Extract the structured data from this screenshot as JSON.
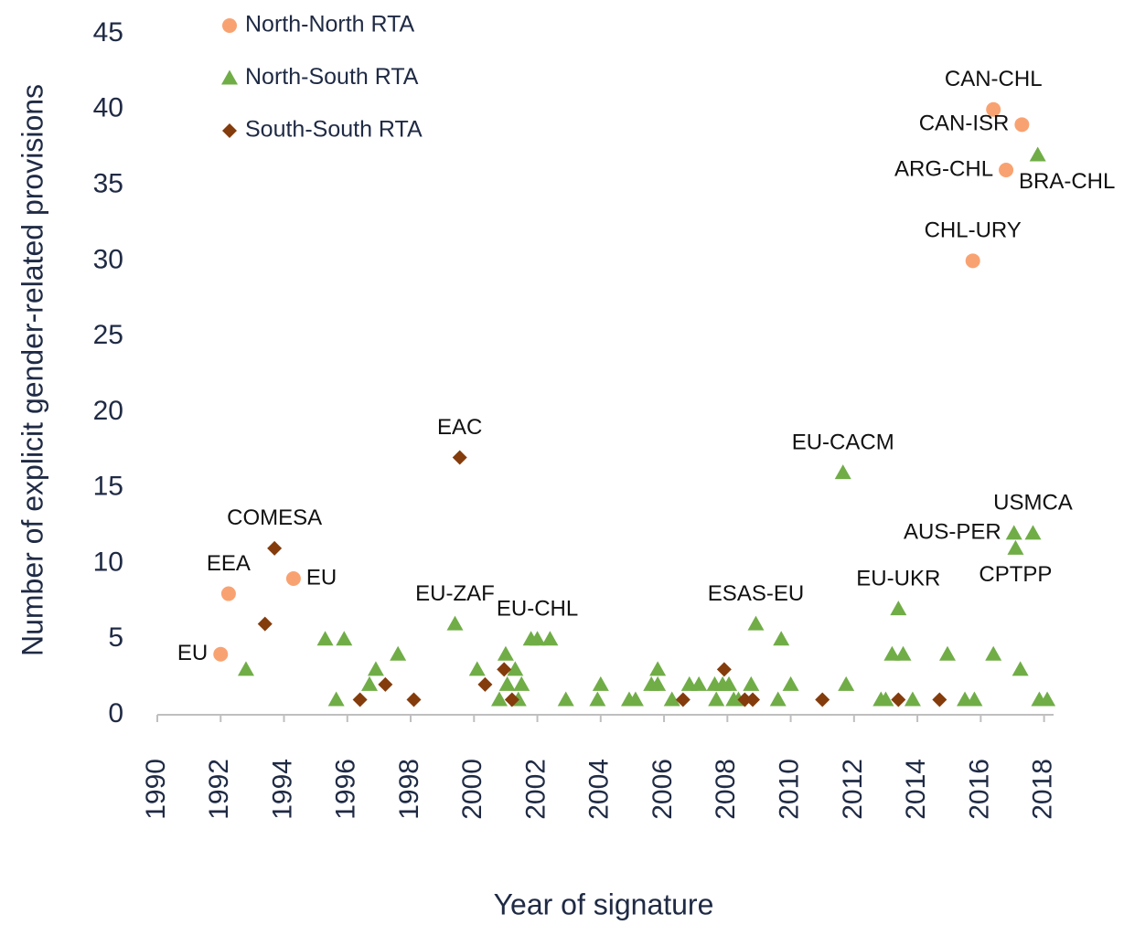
{
  "chart_data": {
    "type": "scatter",
    "x_label": "Year of signature",
    "y_label": "Number of explicit gender-related provisions",
    "xlim": [
      1990,
      2018.3
    ],
    "xticks": [
      1990,
      1992,
      1994,
      1996,
      1998,
      2000,
      2002,
      2004,
      2006,
      2008,
      2010,
      2012,
      2014,
      2016,
      2018
    ],
    "ylim": [
      0,
      45
    ],
    "yticks": [
      0,
      5,
      10,
      15,
      20,
      25,
      30,
      35,
      40,
      45
    ],
    "legend": "top-left",
    "series": [
      {
        "name": "North-North RTA",
        "color": "#f9a271",
        "marker": "circle",
        "x": [
          1992.0,
          1992.25,
          1994.3,
          2016.4,
          2017.3,
          2016.8,
          2015.75
        ],
        "values": [
          4,
          8,
          9,
          40,
          39,
          36,
          30
        ],
        "labels": [
          "EU",
          "EEA",
          "EU",
          "CAN-CHL",
          "CAN-ISR",
          "ARG-CHL",
          "CHL-URY"
        ]
      },
      {
        "name": "North-South RTA",
        "color": "#70ad47",
        "marker": "triangle",
        "x": [
          1992.8,
          1995.3,
          1995.65,
          1995.9,
          1996.7,
          1996.9,
          1997.6,
          1999.4,
          2000.1,
          2000.8,
          2001.0,
          2001.05,
          2001.3,
          2001.4,
          2001.5,
          2001.8,
          2002.0,
          2002.4,
          2002.9,
          2003.9,
          2004.0,
          2004.9,
          2005.1,
          2005.6,
          2005.8,
          2005.8,
          2006.25,
          2006.8,
          2007.1,
          2007.6,
          2007.65,
          2007.85,
          2008.05,
          2008.2,
          2008.35,
          2008.75,
          2008.9,
          2009.6,
          2009.7,
          2010.0,
          2011.65,
          2011.75,
          2012.85,
          2013.0,
          2013.2,
          2013.4,
          2013.55,
          2013.85,
          2014.95,
          2015.5,
          2015.8,
          2016.4,
          2017.05,
          2017.1,
          2017.25,
          2017.65,
          2017.8,
          2017.85,
          2018.1
        ],
        "values": [
          3,
          5,
          1,
          5,
          2,
          3,
          4,
          6,
          3,
          1,
          4,
          2,
          3,
          1,
          2,
          5,
          5,
          5,
          1,
          1,
          2,
          1,
          1,
          2,
          3,
          2,
          1,
          2,
          2,
          2,
          1,
          2,
          2,
          1,
          1,
          2,
          6,
          1,
          5,
          2,
          16,
          2,
          1,
          1,
          4,
          7,
          4,
          1,
          4,
          1,
          1,
          4,
          12,
          11,
          3,
          12,
          37,
          1,
          1
        ],
        "labels": [
          null,
          null,
          null,
          null,
          null,
          null,
          null,
          "EU-ZAF",
          null,
          null,
          null,
          null,
          null,
          null,
          null,
          null,
          "EU-CHL",
          null,
          null,
          null,
          null,
          null,
          null,
          null,
          null,
          null,
          null,
          null,
          null,
          null,
          null,
          null,
          null,
          null,
          null,
          null,
          "ESAS-EU",
          null,
          null,
          null,
          "EU-CACM",
          null,
          null,
          null,
          null,
          "EU-UKR",
          null,
          null,
          null,
          null,
          null,
          null,
          "AUS-PER",
          "CPTPP",
          null,
          "USMCA",
          "BRA-CHL",
          null,
          null
        ]
      },
      {
        "name": "South-South RTA",
        "color": "#843c0c",
        "marker": "diamond",
        "x": [
          1993.7,
          1993.4,
          1996.4,
          1997.2,
          1998.1,
          1999.55,
          2000.35,
          2000.95,
          2001.2,
          2006.6,
          2007.9,
          2008.55,
          2008.8,
          2011.0,
          2013.4,
          2014.7
        ],
        "values": [
          11,
          6,
          1,
          2,
          1,
          17,
          2,
          3,
          1,
          1,
          3,
          1,
          1,
          1,
          1,
          1
        ],
        "labels": [
          "COMESA",
          null,
          null,
          null,
          null,
          "EAC",
          null,
          null,
          null,
          null,
          null,
          null,
          null,
          null,
          null,
          null
        ]
      }
    ]
  }
}
